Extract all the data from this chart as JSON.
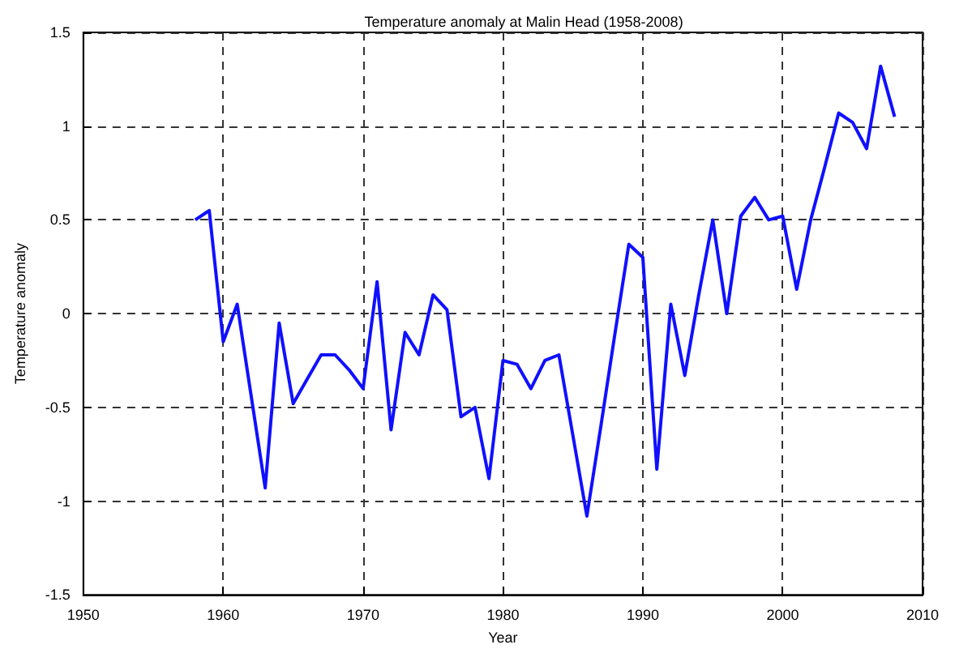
{
  "chart_data": {
    "type": "line",
    "title": "Temperature anomaly at Malin Head (1958-2008)",
    "xlabel": "Year",
    "ylabel": "Temperature anomaly",
    "x": [
      1958,
      1959,
      1960,
      1961,
      1962,
      1963,
      1964,
      1965,
      1966,
      1967,
      1968,
      1969,
      1970,
      1971,
      1972,
      1973,
      1974,
      1975,
      1976,
      1977,
      1978,
      1979,
      1980,
      1981,
      1982,
      1983,
      1984,
      1985,
      1986,
      1987,
      1988,
      1989,
      1990,
      1991,
      1992,
      1993,
      1994,
      1995,
      1996,
      1997,
      1998,
      1999,
      2000,
      2001,
      2002,
      2003,
      2004,
      2005,
      2006,
      2007,
      2008
    ],
    "series": [
      {
        "color": "#1010ff",
        "values": [
          0.5,
          0.55,
          -0.15,
          0.05,
          -0.44,
          -0.93,
          -0.05,
          -0.48,
          -0.35,
          -0.22,
          -0.22,
          -0.3,
          -0.4,
          0.17,
          -0.62,
          -0.1,
          -0.22,
          0.1,
          0.02,
          -0.55,
          -0.5,
          -0.88,
          -0.25,
          -0.27,
          -0.4,
          -0.25,
          -0.22,
          -0.65,
          -1.08,
          -0.6,
          -0.11,
          0.37,
          0.3,
          -0.83,
          0.05,
          -0.33,
          0.1,
          0.5,
          0.0,
          0.52,
          0.62,
          0.5,
          0.52,
          0.13,
          0.5,
          0.78,
          1.07,
          1.02,
          0.88,
          1.32,
          1.05
        ]
      }
    ],
    "xlim": [
      1950,
      2010
    ],
    "xticks": [
      1950,
      1960,
      1970,
      1980,
      1990,
      2000,
      2010
    ],
    "ylim": [
      -1.5,
      1.5
    ],
    "yticks": [
      -1.5,
      -1,
      -0.5,
      0,
      0.5,
      1,
      1.5
    ],
    "grid": true,
    "marker": "none",
    "line_style": "solid"
  }
}
